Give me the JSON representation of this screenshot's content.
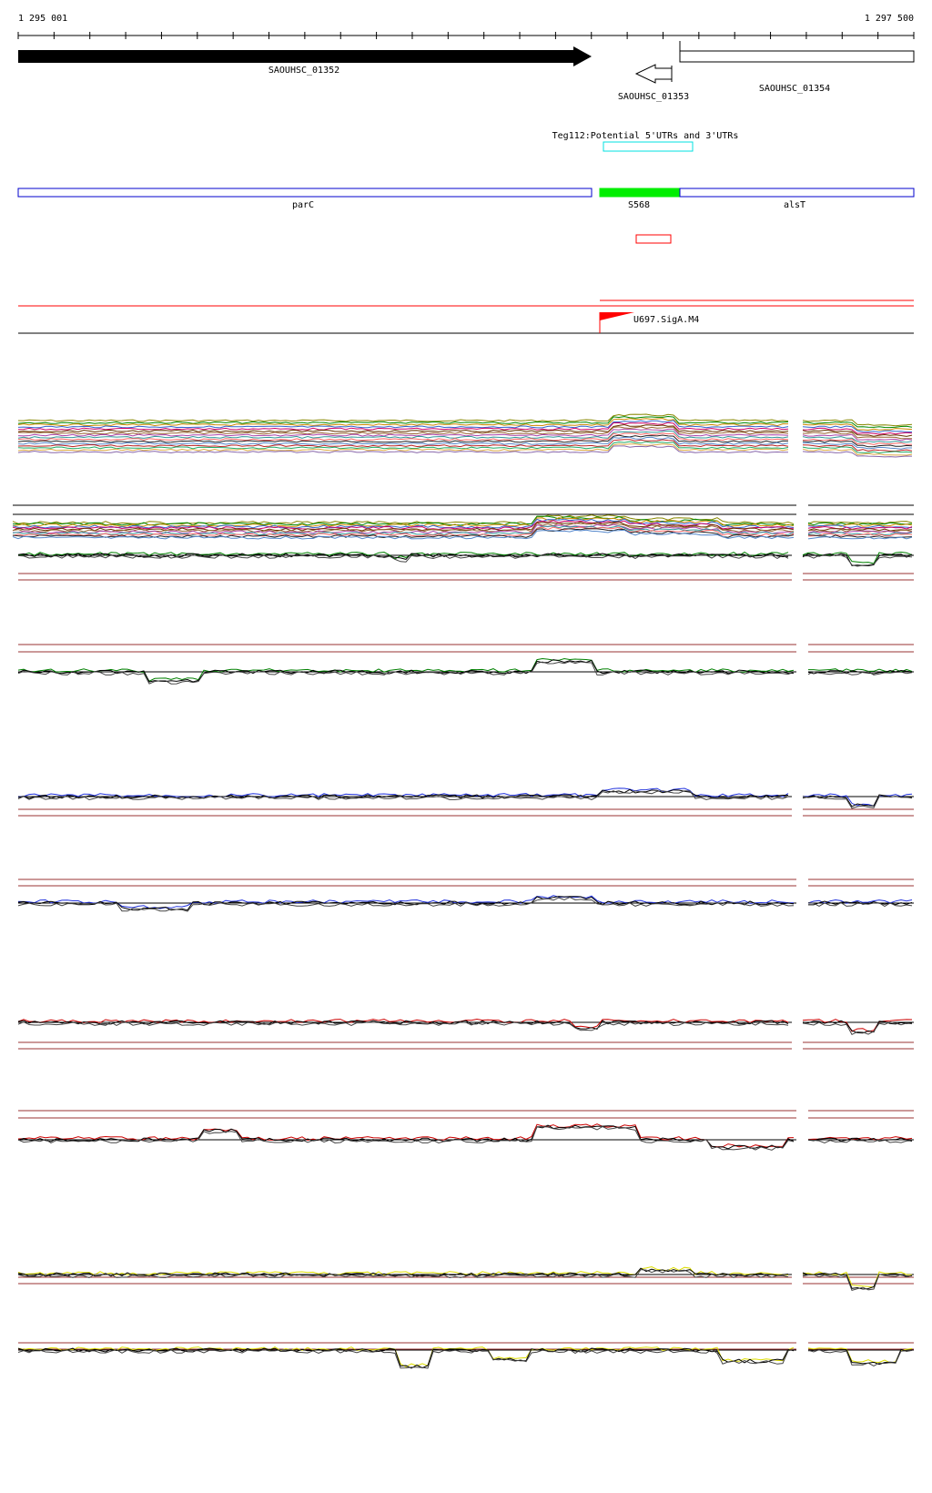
{
  "ruler": {
    "start_label": "1 295 001",
    "end_label": "1 297 500"
  },
  "genes": [
    {
      "label": "SAOUHSC_01352",
      "strand": "+"
    },
    {
      "label": "SAOUHSC_01353",
      "strand": "-"
    },
    {
      "label": "SAOUHSC_01354",
      "strand": "+"
    }
  ],
  "utr_track": {
    "label": "Teg112:Potential 5'UTRs and 3'UTRs",
    "color": "#00e0e0"
  },
  "annotations": [
    {
      "label": "parC",
      "color": "#0000cc"
    },
    {
      "label": "S568",
      "color": "#00ee00"
    },
    {
      "label": "alsT",
      "color": "#0000cc"
    }
  ],
  "promoter": {
    "label": "U697.SigA.M4",
    "color": "#ff0000"
  },
  "colors": {
    "red": "#ff0000",
    "hline": "#993333",
    "green": "#008000",
    "blue": "#2233dd",
    "darkred": "#cc0000",
    "yellow": "#dddd00"
  }
}
